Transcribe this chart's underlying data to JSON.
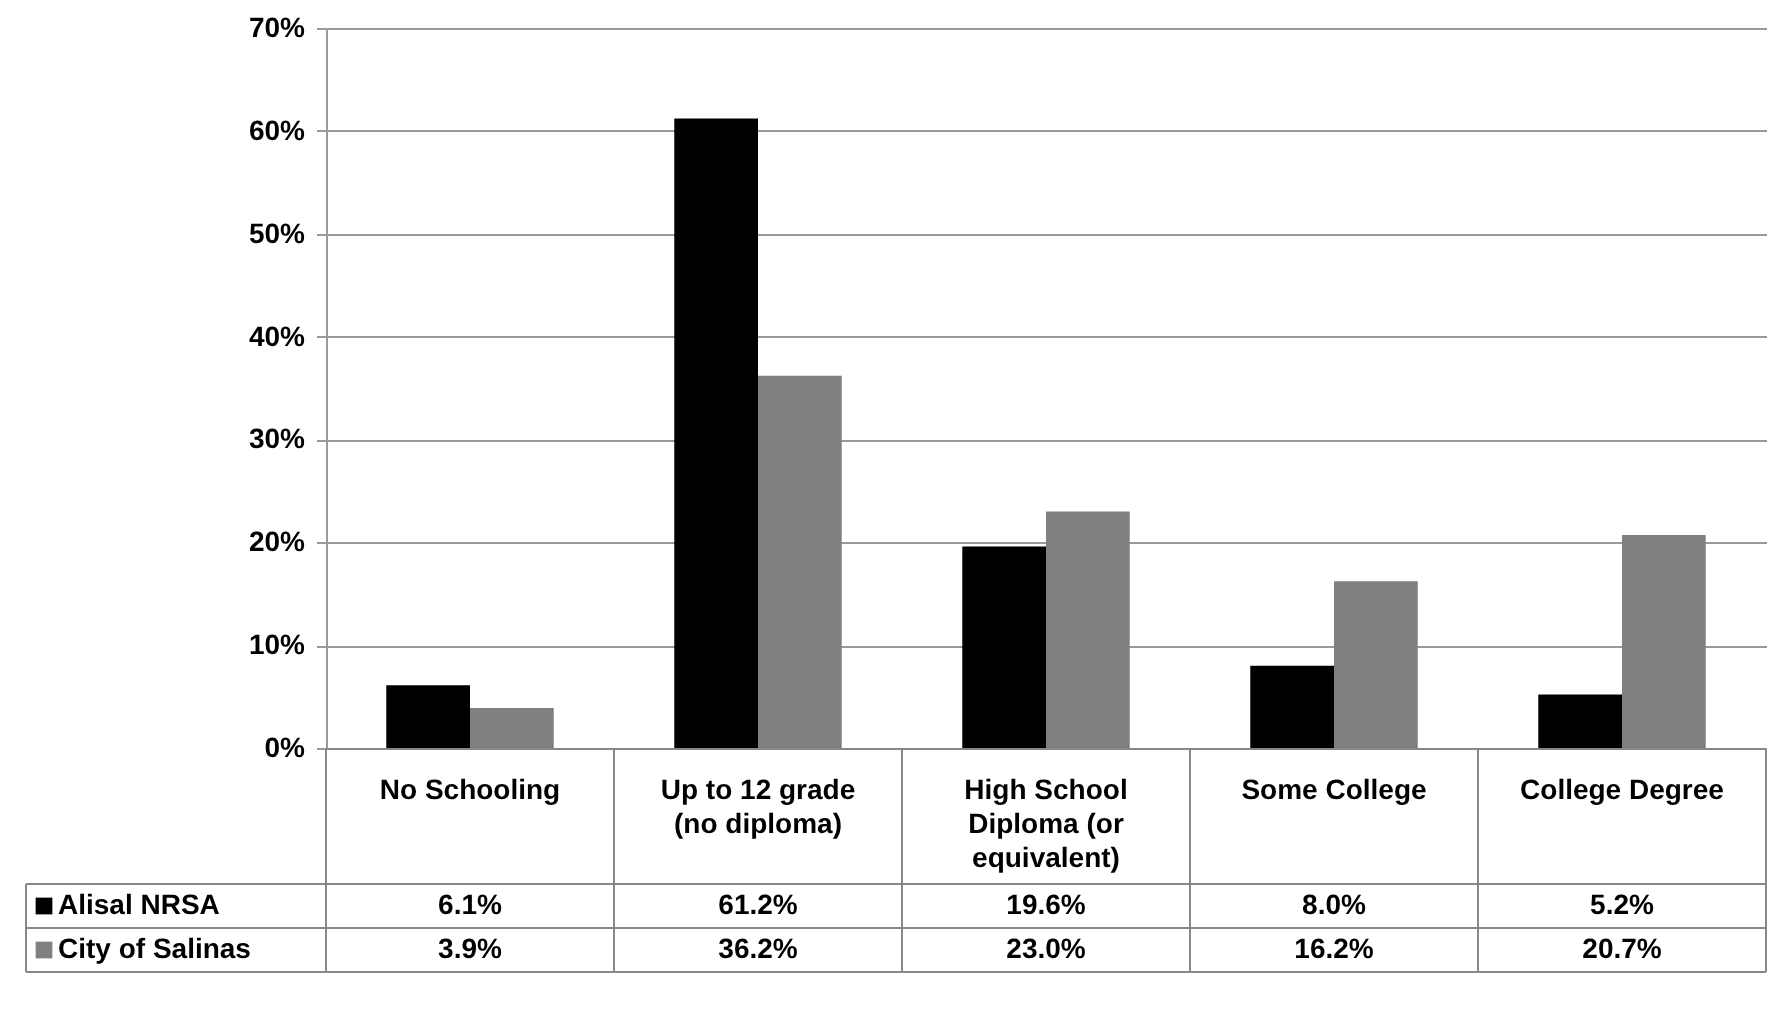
{
  "chart_data": {
    "type": "bar",
    "categories": [
      "No Schooling",
      "Up to 12 grade (no diploma)",
      "High School Diploma (or equivalent)",
      "Some College",
      "College Degree"
    ],
    "series": [
      {
        "name": "Alisal NRSA",
        "color": "#000000",
        "values": [
          6.1,
          61.2,
          19.6,
          8.0,
          5.2
        ],
        "value_labels": [
          "6.1%",
          "61.2%",
          "19.6%",
          "8.0%",
          "5.2%"
        ]
      },
      {
        "name": "City of Salinas",
        "color": "#808080",
        "values": [
          3.9,
          36.2,
          23.0,
          16.2,
          20.7
        ],
        "value_labels": [
          "3.9%",
          "36.2%",
          "23.0%",
          "16.2%",
          "20.7%"
        ]
      }
    ],
    "ylim": [
      0,
      70
    ],
    "yticks": [
      {
        "value": 0,
        "label": "0%"
      },
      {
        "value": 10,
        "label": "10%"
      },
      {
        "value": 20,
        "label": "20%"
      },
      {
        "value": 30,
        "label": "30%"
      },
      {
        "value": 40,
        "label": "40%"
      },
      {
        "value": 50,
        "label": "50%"
      },
      {
        "value": 60,
        "label": "60%"
      },
      {
        "value": 70,
        "label": "70%"
      }
    ],
    "grid": "y",
    "legend": "bottom left"
  }
}
